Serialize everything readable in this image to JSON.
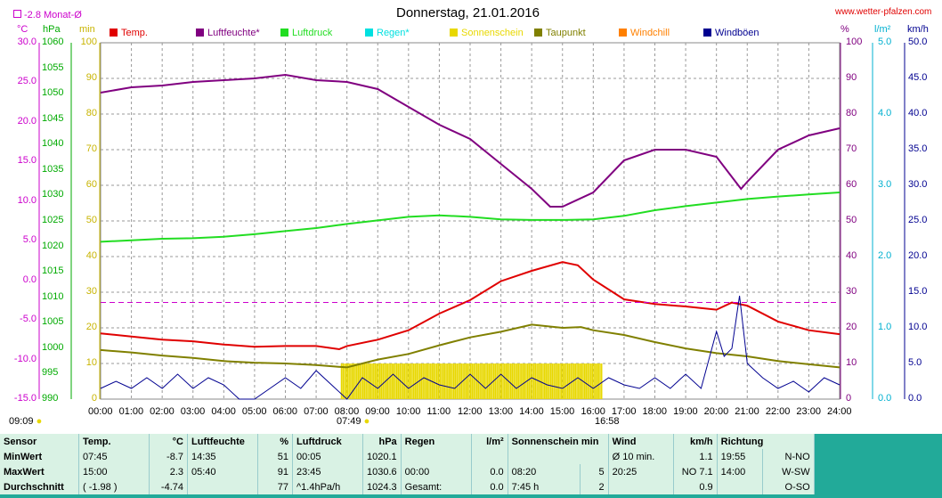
{
  "header": {
    "title": "Donnerstag, 21.01.2016",
    "site": "www.wetter-pfalzen.com",
    "month_avg_label": "-2.8 Monat-Ø"
  },
  "legend": [
    {
      "label": "Temp.",
      "color": "#e00000"
    },
    {
      "label": "Luftfeuchte*",
      "color": "#800080"
    },
    {
      "label": "Luftdruck",
      "color": "#22dd22"
    },
    {
      "label": "Regen*",
      "color": "#00e0e0"
    },
    {
      "label": "Sonnenschein",
      "color": "#e8d800"
    },
    {
      "label": "Taupunkt",
      "color": "#808000"
    },
    {
      "label": "Windchill",
      "color": "#ff8000"
    },
    {
      "label": "Windböen",
      "color": "#000090"
    }
  ],
  "axes": {
    "temp_unit": "°C",
    "hpa_unit": "hPa",
    "min_unit": "min",
    "pct_unit": "%",
    "rain_unit": "l/m²",
    "wind_unit": "km/h",
    "temp_ticks": [
      "30.0",
      "25.0",
      "20.0",
      "15.0",
      "10.0",
      "5.0",
      "0.0",
      "-5.0",
      "-10.0",
      "-15.0"
    ],
    "hpa_ticks": [
      "1060",
      "1055",
      "1050",
      "1045",
      "1040",
      "1035",
      "1030",
      "1025",
      "1020",
      "1015",
      "1010",
      "1005",
      "1000",
      "995",
      "990"
    ],
    "min_ticks": [
      "100",
      "90",
      "80",
      "70",
      "60",
      "50",
      "40",
      "30",
      "20",
      "10",
      "0"
    ],
    "pct_ticks": [
      "100",
      "90",
      "80",
      "70",
      "60",
      "50",
      "40",
      "30",
      "20",
      "10",
      "0"
    ],
    "rain_ticks": [
      "5.0",
      "4.0",
      "3.0",
      "2.0",
      "1.0",
      "0.0"
    ],
    "wind_ticks": [
      "50.0",
      "45.0",
      "40.0",
      "35.0",
      "30.0",
      "25.0",
      "20.0",
      "15.0",
      "10.0",
      "5.0",
      "0.0"
    ],
    "time_ticks": [
      "00:00",
      "01:00",
      "02:00",
      "03:00",
      "04:00",
      "05:00",
      "06:00",
      "07:00",
      "08:00",
      "09:00",
      "10:00",
      "11:00",
      "12:00",
      "13:00",
      "14:00",
      "15:00",
      "16:00",
      "17:00",
      "18:00",
      "19:00",
      "20:00",
      "21:00",
      "22:00",
      "23:00",
      "24:00"
    ]
  },
  "sun_events": {
    "left": "09:09",
    "sunrise": "07:49",
    "sunset": "16:58"
  },
  "colors": {
    "background": "#ffffff",
    "stats_background": "#d9f2e4",
    "month_avg_line": "#cc00cc"
  },
  "chart_data": {
    "type": "line",
    "title": "Donnerstag, 21.01.2016",
    "x_unit": "hours",
    "grid": true,
    "month_avg_temp": -2.8,
    "series": [
      {
        "name": "Temp.",
        "axis": "°C",
        "color": "#e00000",
        "x": [
          0,
          1,
          2,
          3,
          4,
          5,
          6,
          7,
          7.75,
          8,
          9,
          10,
          11,
          12,
          13,
          14,
          15,
          15.5,
          16,
          17,
          18,
          19,
          20,
          20.5,
          21,
          22,
          23,
          24
        ],
        "y": [
          -6.7,
          -7.1,
          -7.5,
          -7.7,
          -8.1,
          -8.4,
          -8.3,
          -8.3,
          -8.7,
          -8.3,
          -7.5,
          -6.3,
          -4.2,
          -2.5,
          -0.1,
          1.2,
          2.3,
          1.9,
          0.1,
          -2.4,
          -3.0,
          -3.3,
          -3.7,
          -2.8,
          -3.2,
          -5.2,
          -6.3,
          -6.8
        ]
      },
      {
        "name": "Luftfeuchte*",
        "axis": "%",
        "color": "#800080",
        "x": [
          0,
          1,
          2,
          3,
          4,
          5,
          6,
          7,
          8,
          9,
          10,
          11,
          12,
          13,
          14,
          14.6,
          15,
          16,
          17,
          18,
          19,
          20,
          20.8,
          21,
          22,
          23,
          24
        ],
        "y": [
          86,
          87.5,
          88,
          89,
          89.5,
          90,
          91,
          89.5,
          89,
          87,
          82,
          77,
          73,
          66,
          59,
          54,
          54,
          58,
          67,
          70,
          70,
          68,
          59,
          61,
          70,
          74,
          76
        ]
      },
      {
        "name": "Luftdruck",
        "axis": "hPa",
        "color": "#22dd22",
        "x": [
          0,
          1,
          2,
          3,
          4,
          5,
          6,
          7,
          8,
          9,
          10,
          11,
          12,
          13,
          14,
          15,
          16,
          17,
          18,
          19,
          20,
          21,
          22,
          23,
          24
        ],
        "y": [
          1020.9,
          1021.2,
          1021.5,
          1021.6,
          1021.9,
          1022.4,
          1023.0,
          1023.6,
          1024.4,
          1025.1,
          1025.8,
          1026.1,
          1025.8,
          1025.3,
          1025.2,
          1025.2,
          1025.3,
          1026.0,
          1027.1,
          1027.9,
          1028.6,
          1029.3,
          1029.8,
          1030.2,
          1030.6
        ]
      },
      {
        "name": "Taupunkt",
        "axis": "°C",
        "color": "#808000",
        "x": [
          0,
          1,
          2,
          3,
          4,
          5,
          6,
          7,
          8,
          9,
          10,
          11,
          12,
          13,
          14,
          15,
          15.6,
          16,
          17,
          18,
          19,
          20,
          21,
          22,
          23,
          24
        ],
        "y": [
          -8.8,
          -9.1,
          -9.5,
          -9.8,
          -10.2,
          -10.4,
          -10.5,
          -10.7,
          -11.0,
          -10.0,
          -9.3,
          -8.2,
          -7.2,
          -6.5,
          -5.6,
          -6.0,
          -5.9,
          -6.3,
          -6.9,
          -7.8,
          -8.6,
          -9.2,
          -9.6,
          -10.2,
          -10.6,
          -11.0
        ]
      },
      {
        "name": "Windböen",
        "axis": "km/h",
        "color": "#000090",
        "x": [
          0,
          0.5,
          1,
          1.5,
          2,
          2.5,
          3,
          3.5,
          4,
          4.5,
          5,
          5.5,
          6,
          6.5,
          7,
          7.5,
          8,
          8.5,
          9,
          9.5,
          10,
          10.5,
          11,
          11.5,
          12,
          12.5,
          13,
          13.5,
          14,
          14.5,
          15,
          15.5,
          16,
          16.5,
          17,
          17.5,
          18,
          18.5,
          19,
          19.5,
          20,
          20.25,
          20.5,
          20.75,
          21,
          21.5,
          22,
          22.5,
          23,
          23.5,
          24
        ],
        "y": [
          1.5,
          2.5,
          1.5,
          3.0,
          1.5,
          3.5,
          1.5,
          3.0,
          2.0,
          0.0,
          0.0,
          1.5,
          3.0,
          1.5,
          4.0,
          2.0,
          0.0,
          3.0,
          1.5,
          3.5,
          1.5,
          3.0,
          2.0,
          1.5,
          3.5,
          1.5,
          3.5,
          1.5,
          3.0,
          2.0,
          1.5,
          3.0,
          1.5,
          3.0,
          2.0,
          1.5,
          3.0,
          1.5,
          3.5,
          1.5,
          9.5,
          6.0,
          7.1,
          14.5,
          5.0,
          3.0,
          1.5,
          2.5,
          1.0,
          3.0,
          2.0
        ]
      }
    ],
    "sunshine": {
      "name": "Sonnenschein",
      "axis": "min",
      "color": "#e8d800",
      "start": 7.8,
      "end": 16.3,
      "value": 5
    }
  },
  "stats": {
    "headers": [
      "Sensor",
      "Temp.",
      "°C",
      "Luftfeuchte",
      "%",
      "Luftdruck",
      "hPa",
      "Regen",
      "l/m²",
      "Sonnenschein min",
      "Wind",
      "km/h",
      "Richtung"
    ],
    "rows": [
      [
        "MinWert",
        "07:45",
        "-8.7",
        "14:35",
        "51",
        "00:05",
        "1020.1",
        "",
        "",
        "",
        "Ø 10 min.",
        "1.1",
        "19:55",
        "N-NO"
      ],
      [
        "MaxWert",
        "15:00",
        "2.3",
        "05:40",
        "91",
        "23:45",
        "1030.6",
        "00:00",
        "0.0",
        "08:20",
        "5",
        "20:25",
        "NO 7.1",
        "14:00",
        "W-SW"
      ],
      [
        "Durchschnitt",
        "( -1.98 )",
        "-4.74",
        "",
        "77",
        "^1.4hPa/h",
        "1024.3",
        "Gesamt:",
        "0.0",
        "7:45 h",
        "2",
        "",
        "0.9",
        "",
        "O-SO"
      ]
    ]
  }
}
